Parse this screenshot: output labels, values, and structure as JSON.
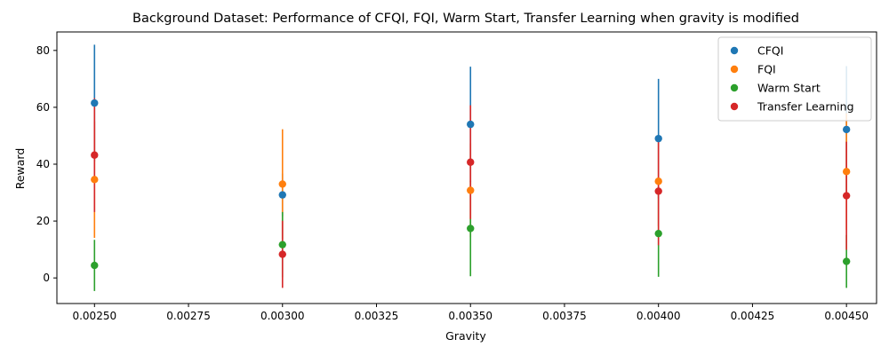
{
  "chart_data": {
    "type": "scatter",
    "title": "Background Dataset: Performance of CFQI, FQI, Warm Start, Transfer Learning when gravity is modified",
    "xlabel": "Gravity",
    "ylabel": "Reward",
    "xlim": [
      0.0024,
      0.00458
    ],
    "ylim": [
      -9,
      86.5
    ],
    "x": [
      0.0025,
      0.003,
      0.0035,
      0.004,
      0.0045
    ],
    "x_ticks": [
      0.0025,
      0.00275,
      0.003,
      0.00325,
      0.0035,
      0.00375,
      0.004,
      0.00425,
      0.0045
    ],
    "x_tick_labels": [
      "0.00250",
      "0.00275",
      "0.00300",
      "0.00325",
      "0.00350",
      "0.00375",
      "0.00400",
      "0.00425",
      "0.00450"
    ],
    "y_ticks": [
      0,
      20,
      40,
      60,
      80
    ],
    "y_tick_labels": [
      "0",
      "20",
      "40",
      "60",
      "80"
    ],
    "grid": false,
    "legend_position": "top-right",
    "series": [
      {
        "name": "CFQI",
        "color": "#1f77b4",
        "values": [
          61.5,
          29.2,
          54.0,
          49.0,
          52.2
        ],
        "errors": [
          20.5,
          7.5,
          20.3,
          21.0,
          22.3
        ]
      },
      {
        "name": "FQI",
        "color": "#ff7f0e",
        "values": [
          34.6,
          33.0,
          30.8,
          34.0,
          37.4
        ],
        "errors": [
          20.5,
          19.3,
          16.5,
          15.8,
          20.5
        ]
      },
      {
        "name": "Warm Start",
        "color": "#2ca02c",
        "values": [
          4.4,
          11.7,
          17.4,
          15.6,
          5.8
        ],
        "errors": [
          9.0,
          11.5,
          16.8,
          15.2,
          9.3
        ]
      },
      {
        "name": "Transfer Learning",
        "color": "#d62728",
        "values": [
          43.2,
          8.3,
          40.7,
          30.5,
          28.9
        ],
        "errors": [
          20.0,
          11.8,
          20.0,
          19.0,
          19.0
        ]
      }
    ]
  }
}
